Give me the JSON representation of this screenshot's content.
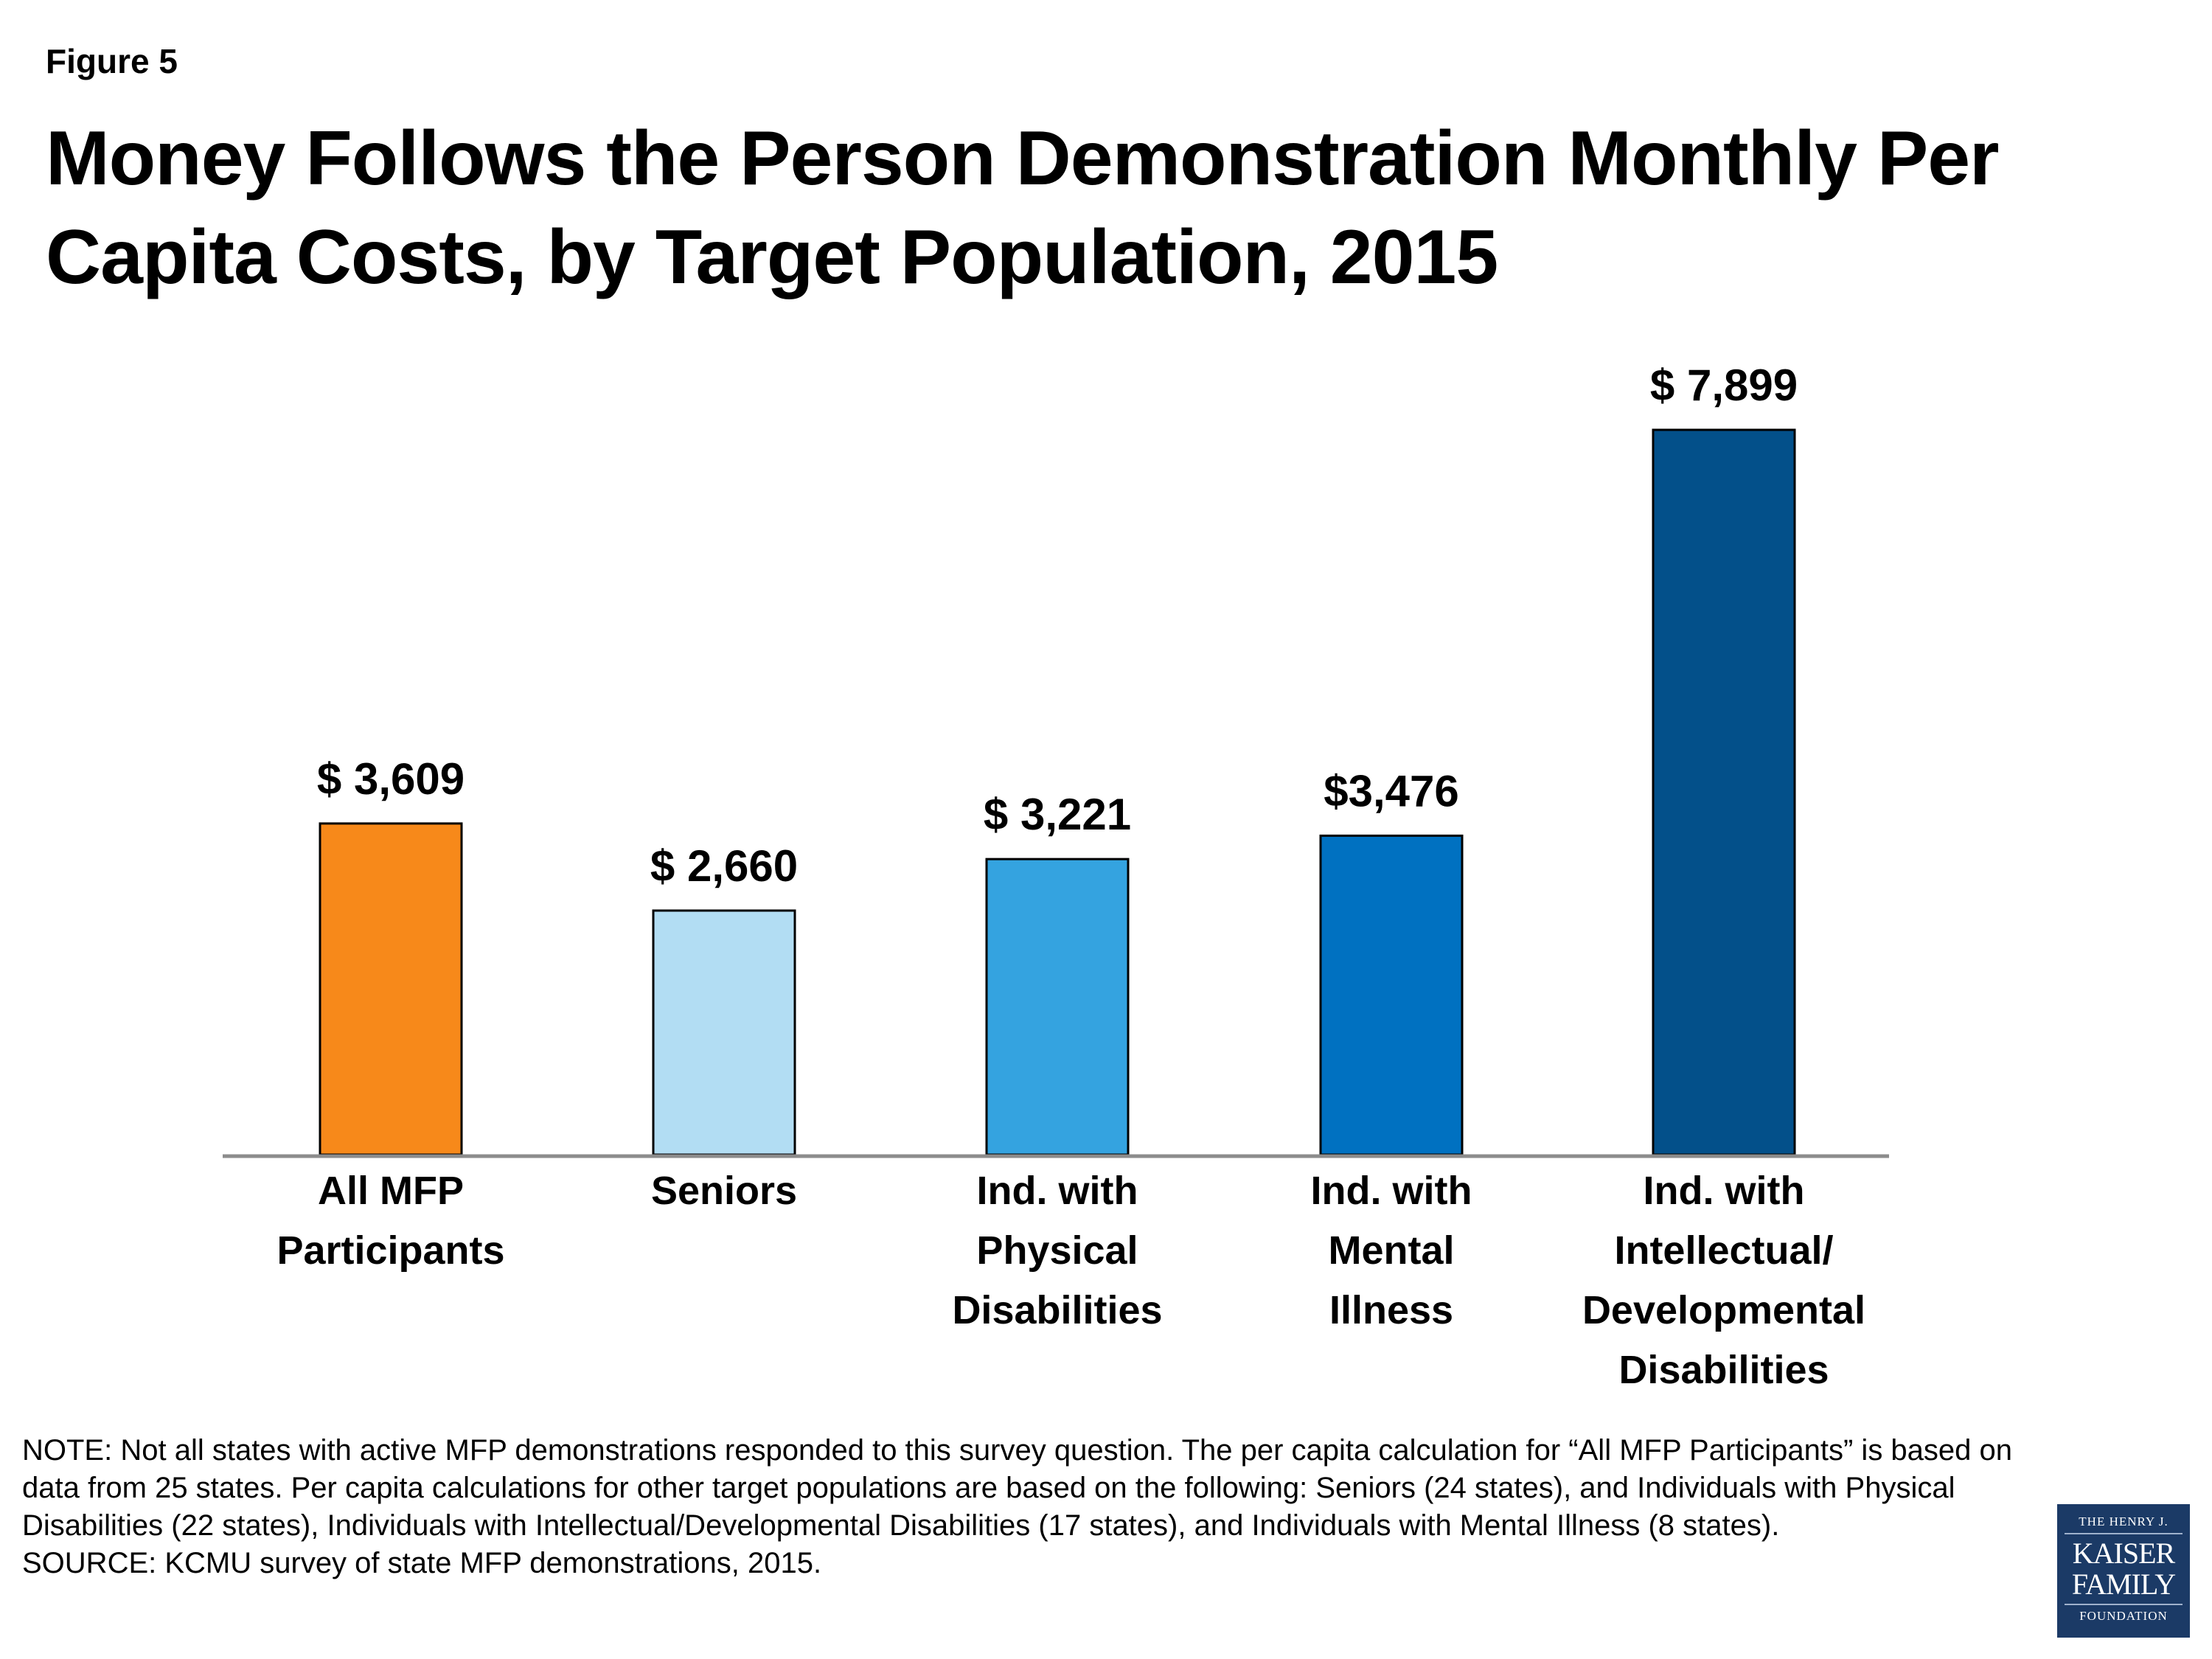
{
  "figure_label": "Figure 5",
  "title": "Money Follows the Person Demonstration Monthly Per Capita Costs, by Target Population, 2015",
  "chart_data": {
    "type": "bar",
    "title": "Money Follows the Person Demonstration Monthly Per Capita Costs, by Target Population, 2015",
    "xlabel": "",
    "ylabel": "",
    "categories": [
      [
        "All MFP",
        "Participants"
      ],
      [
        "Seniors"
      ],
      [
        "Ind. with",
        "Physical",
        "Disabilities"
      ],
      [
        "Ind. with",
        "Mental",
        "Illness"
      ],
      [
        "Ind. with",
        "Intellectual/",
        "Developmental",
        "Disabilities"
      ]
    ],
    "values": [
      3609,
      2660,
      3221,
      3476,
      7899
    ],
    "data_labels": [
      "$ 3,609",
      "$ 2,660",
      "$ 3,221",
      "$3,476",
      "$ 7,899"
    ],
    "colors": [
      "#f7891a",
      "#b2ddf3",
      "#34a3e0",
      "#0071c1",
      "#03508a"
    ],
    "ylim": [
      0,
      9000
    ],
    "grid": false,
    "legend": "none",
    "unit": "USD per month"
  },
  "note": {
    "text": "NOTE:  Not all states with active MFP demonstrations responded to this survey question. The per capita calculation for “All MFP Participants” is based on data from 25 states. Per capita calculations for other target populations are based on the following: Seniors (24 states), and Individuals with Physical Disabilities (22 states), Individuals with Intellectual/Developmental Disabilities (17 states), and Individuals with Mental Illness (8 states).",
    "source": "SOURCE: KCMU survey of state MFP demonstrations, 2015."
  },
  "logo": {
    "line1": "THE HENRY J.",
    "line2": "KAISER",
    "line3": "FAMILY",
    "line4": "FOUNDATION"
  }
}
